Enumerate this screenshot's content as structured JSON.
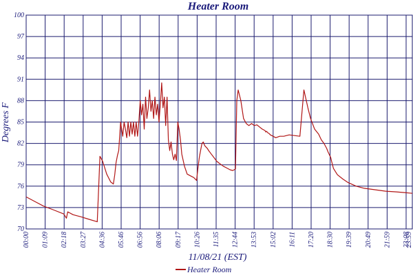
{
  "chart_data": {
    "type": "line",
    "title": "Heater Room",
    "xlabel": "11/08/21 (EST)",
    "ylabel": "Degrees F",
    "ylim": [
      70,
      100
    ],
    "xlim": [
      0,
      1439
    ],
    "grid": true,
    "x_ticks": [
      "00:00",
      "01:09",
      "02:18",
      "03:27",
      "04:36",
      "05:46",
      "06:56",
      "08:06",
      "09:17",
      "10:26",
      "11:35",
      "12:44",
      "13:53",
      "15:02",
      "16:11",
      "17:20",
      "18:30",
      "19:39",
      "20:49",
      "21:59",
      "23:08",
      "23:59"
    ],
    "y_ticks": [
      "100",
      "97",
      "94",
      "91",
      "88",
      "85",
      "82",
      "79",
      "76",
      "73",
      "70"
    ],
    "legend": [
      "Heater Room"
    ],
    "legend_position": "bottom",
    "colors": {
      "series": "#b01515",
      "grid": "#1a1a6e",
      "text": "#1a1a7a"
    },
    "series": [
      {
        "name": "Heater Room",
        "x": [
          0,
          35,
          65,
          100,
          140,
          150,
          155,
          175,
          205,
          230,
          265,
          275,
          285,
          300,
          315,
          325,
          330,
          335,
          340,
          345,
          352,
          360,
          365,
          370,
          375,
          380,
          385,
          390,
          395,
          400,
          405,
          410,
          415,
          420,
          425,
          430,
          435,
          440,
          445,
          450,
          455,
          460,
          465,
          470,
          475,
          480,
          485,
          490,
          495,
          500,
          505,
          510,
          515,
          520,
          525,
          530,
          535,
          540,
          545,
          550,
          555,
          560,
          565,
          570,
          575,
          580,
          590,
          600,
          610,
          620,
          625,
          630,
          635,
          640,
          645,
          650,
          655,
          660,
          665,
          670,
          675,
          680,
          690,
          700,
          710,
          720,
          735,
          750,
          760,
          770,
          780,
          785,
          790,
          800,
          810,
          820,
          830,
          840,
          850,
          860,
          870,
          880,
          890,
          893,
          896,
          900,
          905,
          910,
          920,
          930,
          945,
          960,
          980,
          1000,
          1020,
          1035,
          1050,
          1060,
          1075,
          1090,
          1100,
          1110,
          1120,
          1125,
          1135,
          1138,
          1145,
          1160,
          1180,
          1200,
          1230,
          1260,
          1300,
          1340,
          1380,
          1410,
          1439
        ],
        "values": [
          74.5,
          73.8,
          73.2,
          72.7,
          72.1,
          71.5,
          72.4,
          72.0,
          71.7,
          71.4,
          71.0,
          80.2,
          79.5,
          77.7,
          76.6,
          76.3,
          77.6,
          79.3,
          80.3,
          81.0,
          85.0,
          83.0,
          85.0,
          84.0,
          82.8,
          85.0,
          83.0,
          85.0,
          83.3,
          85.0,
          83.0,
          85.0,
          83.0,
          85.0,
          88.0,
          86.0,
          87.5,
          84.0,
          88.5,
          85.5,
          87.0,
          89.5,
          86.5,
          88.0,
          85.5,
          88.5,
          86.0,
          87.5,
          85.0,
          87.5,
          90.5,
          87.0,
          88.5,
          84.5,
          88.5,
          82.5,
          81.0,
          82.2,
          80.5,
          79.7,
          80.5,
          79.6,
          85.0,
          84.0,
          82.5,
          80.5,
          78.8,
          77.7,
          77.5,
          77.3,
          77.2,
          77.0,
          76.8,
          78.5,
          80.0,
          81.0,
          82.0,
          82.2,
          81.7,
          81.5,
          81.3,
          81.0,
          80.5,
          80.0,
          79.5,
          79.2,
          78.8,
          78.5,
          78.3,
          78.2,
          78.4,
          88.0,
          89.5,
          88.0,
          85.5,
          84.8,
          84.5,
          84.8,
          84.5,
          84.6,
          84.3,
          84.0,
          83.8,
          83.6,
          83.7,
          83.5,
          83.4,
          83.2,
          83.0,
          82.8,
          83.0,
          83.0,
          83.2,
          83.1,
          83.0,
          89.5,
          87.0,
          85.5,
          84.0,
          83.3,
          82.5,
          82.0,
          81.3,
          80.8,
          80.0,
          79.5,
          78.5,
          77.6,
          77.0,
          76.5,
          76.0,
          75.7,
          75.5,
          75.3,
          75.2,
          75.1,
          75.0
        ],
        "note_values_offset": "none"
      }
    ]
  }
}
